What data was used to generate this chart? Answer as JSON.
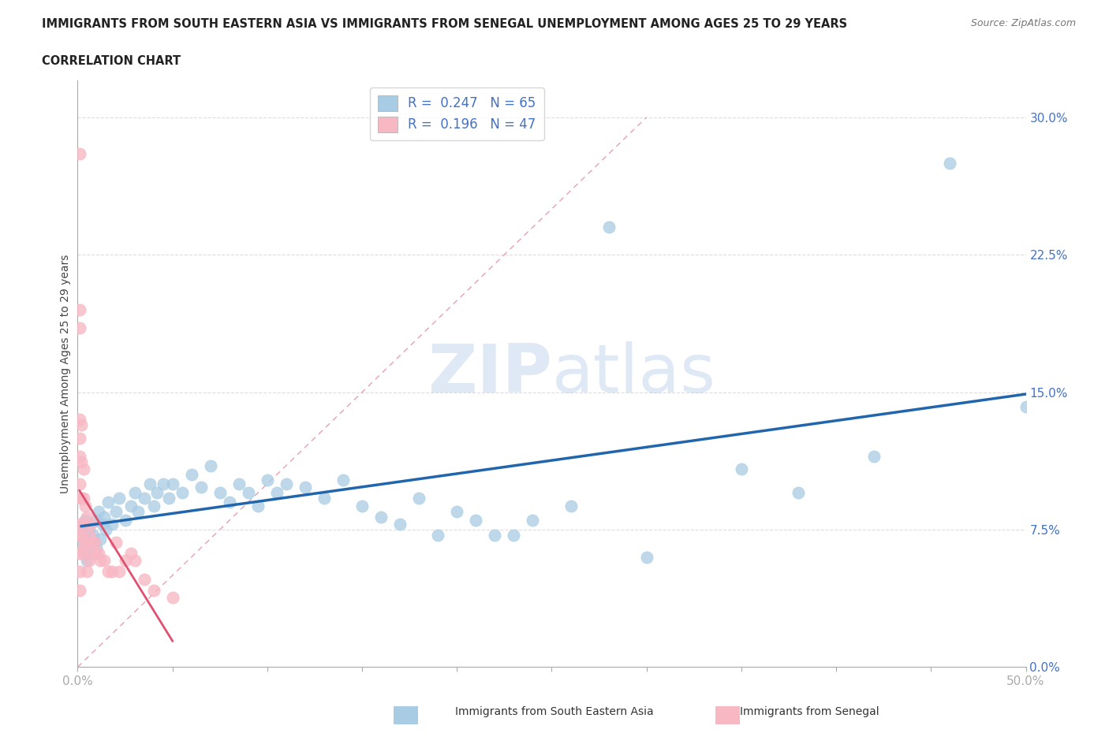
{
  "title_line1": "IMMIGRANTS FROM SOUTH EASTERN ASIA VS IMMIGRANTS FROM SENEGAL UNEMPLOYMENT AMONG AGES 25 TO 29 YEARS",
  "title_line2": "CORRELATION CHART",
  "source_text": "Source: ZipAtlas.com",
  "ylabel": "Unemployment Among Ages 25 to 29 years",
  "xlim": [
    0.0,
    0.5
  ],
  "ylim": [
    0.0,
    0.32
  ],
  "yticks": [
    0.0,
    0.075,
    0.15,
    0.225,
    0.3
  ],
  "ytick_labels": [
    "0.0%",
    "7.5%",
    "15.0%",
    "22.5%",
    "30.0%"
  ],
  "xtick_labels_left": "0.0%",
  "xtick_labels_right": "50.0%",
  "color_blue": "#a8cce4",
  "color_pink": "#f7b8c4",
  "color_blue_line": "#2166ac",
  "color_pink_line": "#e05070",
  "R_blue": 0.247,
  "N_blue": 65,
  "R_pink": 0.196,
  "N_pink": 47,
  "watermark_zip": "ZIP",
  "watermark_atlas": "atlas",
  "blue_scatter_x": [
    0.002,
    0.003,
    0.004,
    0.004,
    0.005,
    0.005,
    0.006,
    0.007,
    0.008,
    0.009,
    0.01,
    0.01,
    0.011,
    0.012,
    0.013,
    0.014,
    0.015,
    0.016,
    0.018,
    0.02,
    0.022,
    0.025,
    0.028,
    0.03,
    0.032,
    0.035,
    0.038,
    0.04,
    0.042,
    0.045,
    0.048,
    0.05,
    0.055,
    0.06,
    0.065,
    0.07,
    0.075,
    0.08,
    0.085,
    0.09,
    0.095,
    0.1,
    0.105,
    0.11,
    0.12,
    0.13,
    0.14,
    0.15,
    0.16,
    0.17,
    0.18,
    0.19,
    0.2,
    0.21,
    0.22,
    0.23,
    0.24,
    0.26,
    0.28,
    0.3,
    0.35,
    0.38,
    0.42,
    0.46,
    0.5
  ],
  "blue_scatter_y": [
    0.075,
    0.068,
    0.08,
    0.062,
    0.07,
    0.058,
    0.075,
    0.065,
    0.072,
    0.068,
    0.08,
    0.065,
    0.085,
    0.07,
    0.078,
    0.082,
    0.075,
    0.09,
    0.078,
    0.085,
    0.092,
    0.08,
    0.088,
    0.095,
    0.085,
    0.092,
    0.1,
    0.088,
    0.095,
    0.1,
    0.092,
    0.1,
    0.095,
    0.105,
    0.098,
    0.11,
    0.095,
    0.09,
    0.1,
    0.095,
    0.088,
    0.102,
    0.095,
    0.1,
    0.098,
    0.092,
    0.102,
    0.088,
    0.082,
    0.078,
    0.092,
    0.072,
    0.085,
    0.08,
    0.072,
    0.072,
    0.08,
    0.088,
    0.24,
    0.06,
    0.108,
    0.095,
    0.115,
    0.275,
    0.142
  ],
  "pink_scatter_x": [
    0.001,
    0.001,
    0.001,
    0.001,
    0.001,
    0.001,
    0.001,
    0.001,
    0.001,
    0.001,
    0.001,
    0.001,
    0.001,
    0.002,
    0.002,
    0.002,
    0.002,
    0.002,
    0.003,
    0.003,
    0.003,
    0.003,
    0.004,
    0.004,
    0.005,
    0.005,
    0.005,
    0.006,
    0.006,
    0.007,
    0.007,
    0.008,
    0.009,
    0.01,
    0.011,
    0.012,
    0.014,
    0.016,
    0.018,
    0.02,
    0.022,
    0.025,
    0.028,
    0.03,
    0.035,
    0.04,
    0.05
  ],
  "pink_scatter_y": [
    0.28,
    0.195,
    0.185,
    0.135,
    0.125,
    0.115,
    0.1,
    0.092,
    0.078,
    0.072,
    0.062,
    0.052,
    0.042,
    0.132,
    0.112,
    0.092,
    0.072,
    0.062,
    0.108,
    0.092,
    0.078,
    0.065,
    0.088,
    0.068,
    0.082,
    0.068,
    0.052,
    0.072,
    0.058,
    0.078,
    0.062,
    0.068,
    0.068,
    0.062,
    0.062,
    0.058,
    0.058,
    0.052,
    0.052,
    0.068,
    0.052,
    0.058,
    0.062,
    0.058,
    0.048,
    0.042,
    0.038
  ],
  "background_color": "#ffffff",
  "grid_color": "#dddddd",
  "title_color": "#222222",
  "tick_color": "#4472c4"
}
